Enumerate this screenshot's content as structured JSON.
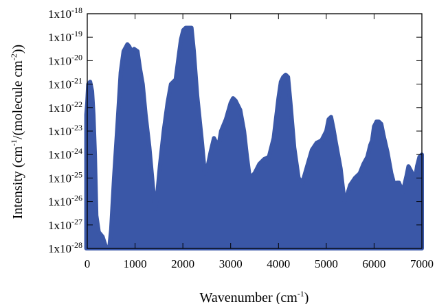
{
  "chart_data": {
    "type": "area",
    "title": "",
    "xlabel": {
      "text": "Wavenumber (cm",
      "sup": "-1",
      "tail": ")"
    },
    "ylabel": {
      "p1": "Intensity (cm",
      "s1": "-1",
      "p2": "/(molecule cm",
      "s2": "-2",
      "p3": "))"
    },
    "xlim": [
      0,
      7000
    ],
    "ylim": [
      1e-28,
      1e-18
    ],
    "yscale": "log",
    "grid": false,
    "legend": "none",
    "color": "#3a57a7",
    "x_ticks": [
      {
        "value": 0,
        "label": "0"
      },
      {
        "value": 1000,
        "label": "1000"
      },
      {
        "value": 2000,
        "label": "2000"
      },
      {
        "value": 3000,
        "label": "3000"
      },
      {
        "value": 4000,
        "label": "4000"
      },
      {
        "value": 5000,
        "label": "5000"
      },
      {
        "value": 6000,
        "label": "6000"
      },
      {
        "value": 7000,
        "label": "7000"
      }
    ],
    "y_ticks": [
      {
        "exp": -28,
        "base": "1x10",
        "sup": "-28"
      },
      {
        "exp": -27,
        "base": "1x10",
        "sup": "-27"
      },
      {
        "exp": -26,
        "base": "1x10",
        "sup": "-26"
      },
      {
        "exp": -25,
        "base": "1x10",
        "sup": "-25"
      },
      {
        "exp": -24,
        "base": "1x10",
        "sup": "-24"
      },
      {
        "exp": -23,
        "base": "1x10",
        "sup": "-23"
      },
      {
        "exp": -22,
        "base": "1x10",
        "sup": "-22"
      },
      {
        "exp": -21,
        "base": "1x10",
        "sup": "-21"
      },
      {
        "exp": -20,
        "base": "1x10",
        "sup": "-20"
      },
      {
        "exp": -19,
        "base": "1x10",
        "sup": "-19"
      },
      {
        "exp": -18,
        "base": "1x10",
        "sup": "-18"
      }
    ],
    "envelope_log10": {
      "x": [
        -20,
        0,
        20,
        60,
        100,
        130,
        160,
        190,
        240,
        320,
        400,
        430,
        460,
        500,
        560,
        640,
        700,
        760,
        840,
        880,
        920,
        980,
        1050,
        1100,
        1160,
        1220,
        1300,
        1380,
        1420,
        1460,
        1520,
        1600,
        1680,
        1750,
        1850,
        1920,
        1960,
        2010,
        2060,
        2100,
        2140,
        2180,
        2230,
        2300,
        2400,
        2460,
        2520,
        2580,
        2650,
        2700,
        2740,
        2800,
        2900,
        3000,
        3050,
        3100,
        3200,
        3280,
        3340,
        3400,
        3500,
        3600,
        3700,
        3800,
        3900,
        4000,
        4050,
        4100,
        4150,
        4200,
        4250,
        4330,
        4420,
        4500,
        4600,
        4700,
        4800,
        4900,
        5000,
        5050,
        5100,
        5150,
        5200,
        5300,
        5380,
        5440,
        5500,
        5600,
        5700,
        5780,
        5860,
        5920,
        5960,
        6000,
        6050,
        6100,
        6150,
        6200,
        6280,
        6360,
        6440,
        6480,
        6520,
        6600,
        6680,
        6720,
        6800,
        6860,
        6900,
        6950,
        7000
      ],
      "y": [
        -22.3,
        -21.8,
        -21.0,
        -20.9,
        -21.3,
        -22.3,
        -24.0,
        -26.6,
        -27.3,
        -27.5,
        -28.0,
        -28.0,
        -28.0,
        -27.2,
        -25.0,
        -22.5,
        -20.5,
        -19.6,
        -19.3,
        -19.4,
        -19.6,
        -19.5,
        -19.6,
        -20.3,
        -21.0,
        -22.3,
        -23.7,
        -25.5,
        -26.3,
        -25.8,
        -24.5,
        -23.0,
        -21.8,
        -21.0,
        -20.8,
        -19.7,
        -19.1,
        -18.7,
        -18.6,
        -18.6,
        -18.6,
        -18.6,
        -19.6,
        -21.5,
        -23.5,
        -24.8,
        -24.5,
        -23.9,
        -23.3,
        -23.5,
        -23.7,
        -23.0,
        -22.5,
        -21.8,
        -21.6,
        -21.7,
        -22.1,
        -23.0,
        -24.1,
        -25.0,
        -24.8,
        -24.4,
        -24.2,
        -24.1,
        -23.3,
        -21.6,
        -20.9,
        -20.7,
        -20.6,
        -20.7,
        -21.8,
        -23.7,
        -25.0,
        -25.2,
        -24.5,
        -23.8,
        -23.5,
        -23.4,
        -23.0,
        -22.5,
        -22.4,
        -22.9,
        -23.5,
        -24.6,
        -26.0,
        -25.7,
        -25.3,
        -25.0,
        -24.8,
        -24.4,
        -24.1,
        -23.6,
        -23.4,
        -22.8,
        -22.6,
        -22.6,
        -22.7,
        -23.2,
        -23.9,
        -24.8,
        -25.4,
        -25.2,
        -25.2,
        -25.6,
        -24.9,
        -24.5,
        -24.8,
        -25.0,
        -24.5,
        -24.1,
        -24.0
      ]
    }
  }
}
